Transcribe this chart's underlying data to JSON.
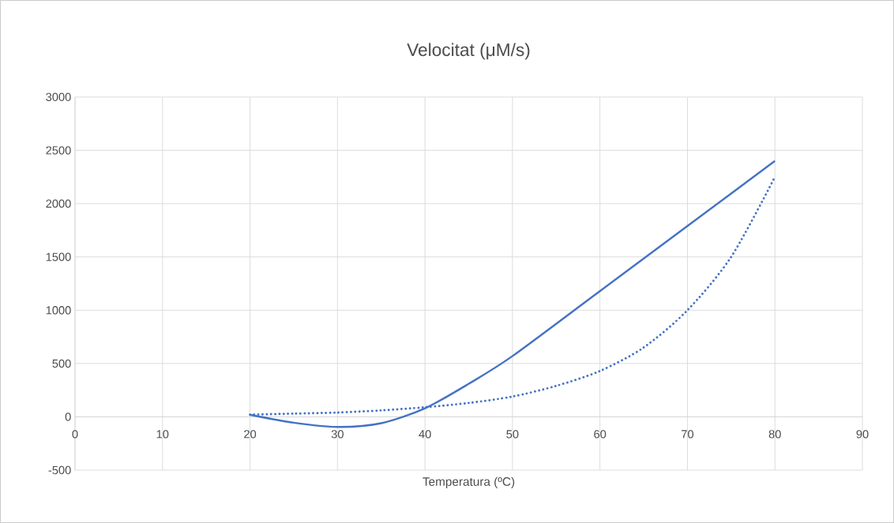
{
  "chart_data": {
    "type": "line",
    "title": "Velocitat (μM/s)",
    "xlabel": "Temperatura (ºC)",
    "xlim": [
      0,
      90
    ],
    "xticks": [
      0,
      10,
      20,
      30,
      40,
      50,
      60,
      70,
      80,
      90
    ],
    "ylim": [
      -500,
      3000
    ],
    "yticks": [
      -500,
      0,
      500,
      1000,
      1500,
      2000,
      2500,
      3000
    ],
    "grid": true,
    "marker": "none",
    "series": [
      {
        "color": "#4472c4",
        "line_style": "solid",
        "x": [
          20,
          25,
          30,
          35,
          40,
          45,
          50,
          60,
          70,
          80
        ],
        "values": [
          20,
          -55,
          -95,
          -60,
          80,
          310,
          570,
          1180,
          1790,
          2400
        ]
      },
      {
        "color": "#4472c4",
        "line_style": "dotted",
        "x": [
          20,
          25,
          30,
          35,
          40,
          45,
          50,
          55,
          60,
          65,
          70,
          75,
          80
        ],
        "values": [
          20,
          30,
          40,
          60,
          90,
          130,
          190,
          290,
          430,
          650,
          1000,
          1500,
          2250
        ]
      }
    ]
  }
}
